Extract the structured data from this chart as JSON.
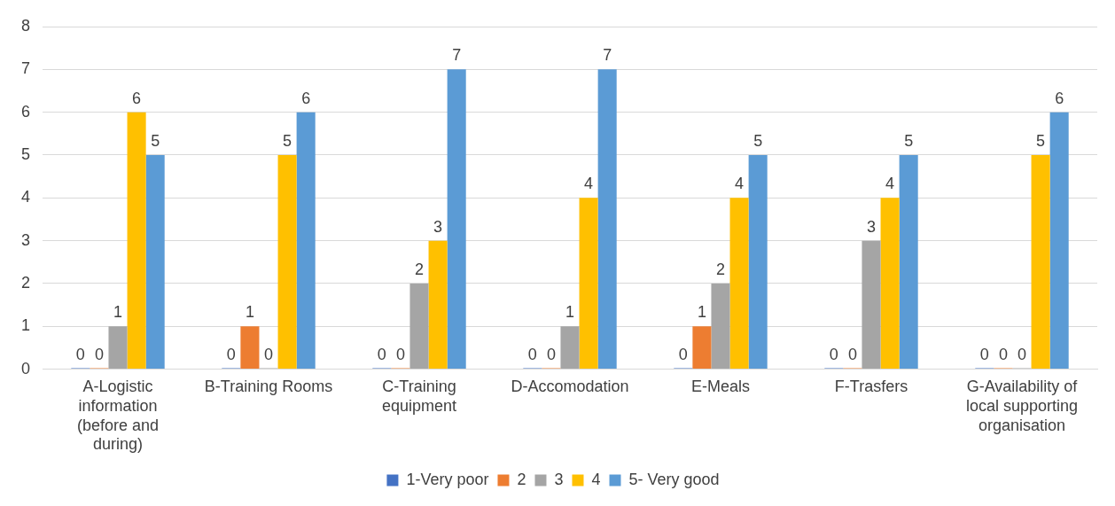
{
  "chart_data": {
    "type": "bar",
    "categories": [
      "A-Logistic information (before and during)",
      "B-Training Rooms",
      "C-Training equipment",
      "D-Accomodation",
      "E-Meals",
      "F-Trasfers",
      "G-Availability of local supporting organisation"
    ],
    "series": [
      {
        "name": "1-Very poor",
        "color": "#4472c4",
        "values": [
          0,
          0,
          0,
          0,
          0,
          0,
          0
        ]
      },
      {
        "name": "2",
        "color": "#ed7d31",
        "values": [
          0,
          1,
          0,
          0,
          1,
          0,
          0
        ]
      },
      {
        "name": "3",
        "color": "#a5a5a5",
        "values": [
          1,
          0,
          2,
          1,
          2,
          3,
          0
        ]
      },
      {
        "name": "4",
        "color": "#ffc000",
        "values": [
          6,
          5,
          3,
          4,
          4,
          4,
          5
        ]
      },
      {
        "name": "5- Very good",
        "color": "#5b9bd5",
        "values": [
          5,
          6,
          7,
          7,
          5,
          5,
          6
        ]
      }
    ],
    "ylim": [
      0,
      8
    ],
    "yticks": [
      0,
      1,
      2,
      3,
      4,
      5,
      6,
      7,
      8
    ],
    "grid": "y",
    "legend": "bottom",
    "data_labels": true
  }
}
